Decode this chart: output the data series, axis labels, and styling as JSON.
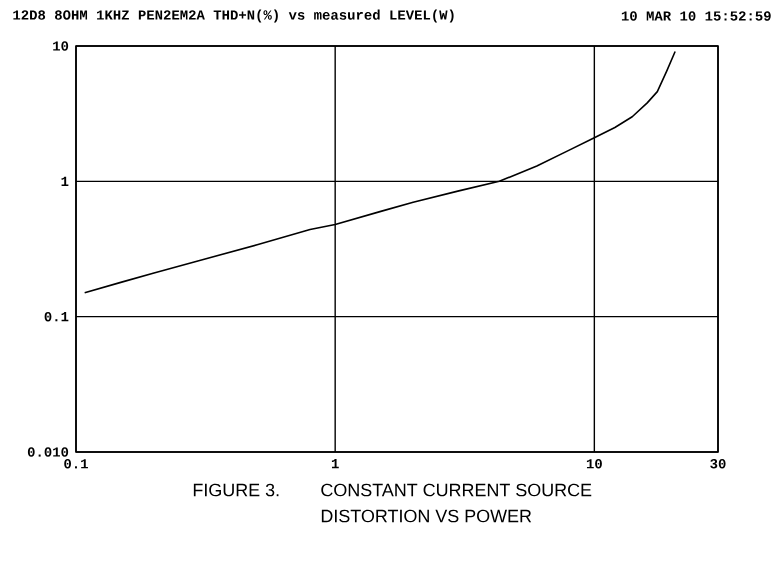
{
  "chart_data": {
    "type": "line",
    "title": "12D8 8OHM 1KHZ PEN2EM2A THD+N(%) vs measured LEVEL(W)",
    "annotations": [
      "10 MAR 10 15:52:59",
      "FIGURE 3.",
      "CONSTANT CURRENT SOURCE",
      "DISTORTION VS POWER"
    ],
    "x": [
      0.108,
      0.15,
      0.2,
      0.3,
      0.5,
      0.8,
      1.0,
      1.5,
      2,
      3,
      4.3,
      6,
      8,
      10,
      12,
      14,
      16,
      17.5,
      19,
      20.5
    ],
    "values": [
      0.15,
      0.18,
      0.21,
      0.26,
      0.34,
      0.44,
      0.48,
      0.6,
      0.7,
      0.85,
      1.0,
      1.3,
      1.7,
      2.1,
      2.5,
      3.0,
      3.8,
      4.6,
      6.5,
      9.1
    ],
    "color": "#000000",
    "xlim": [
      0.1,
      30
    ],
    "ylim": [
      0.01,
      10
    ],
    "xticks": [
      0.1,
      1,
      10,
      30
    ],
    "yticks": [
      {
        "value": 0.01,
        "label": "0.010"
      },
      0.1,
      1,
      10
    ],
    "log": "xy",
    "grid": true
  }
}
